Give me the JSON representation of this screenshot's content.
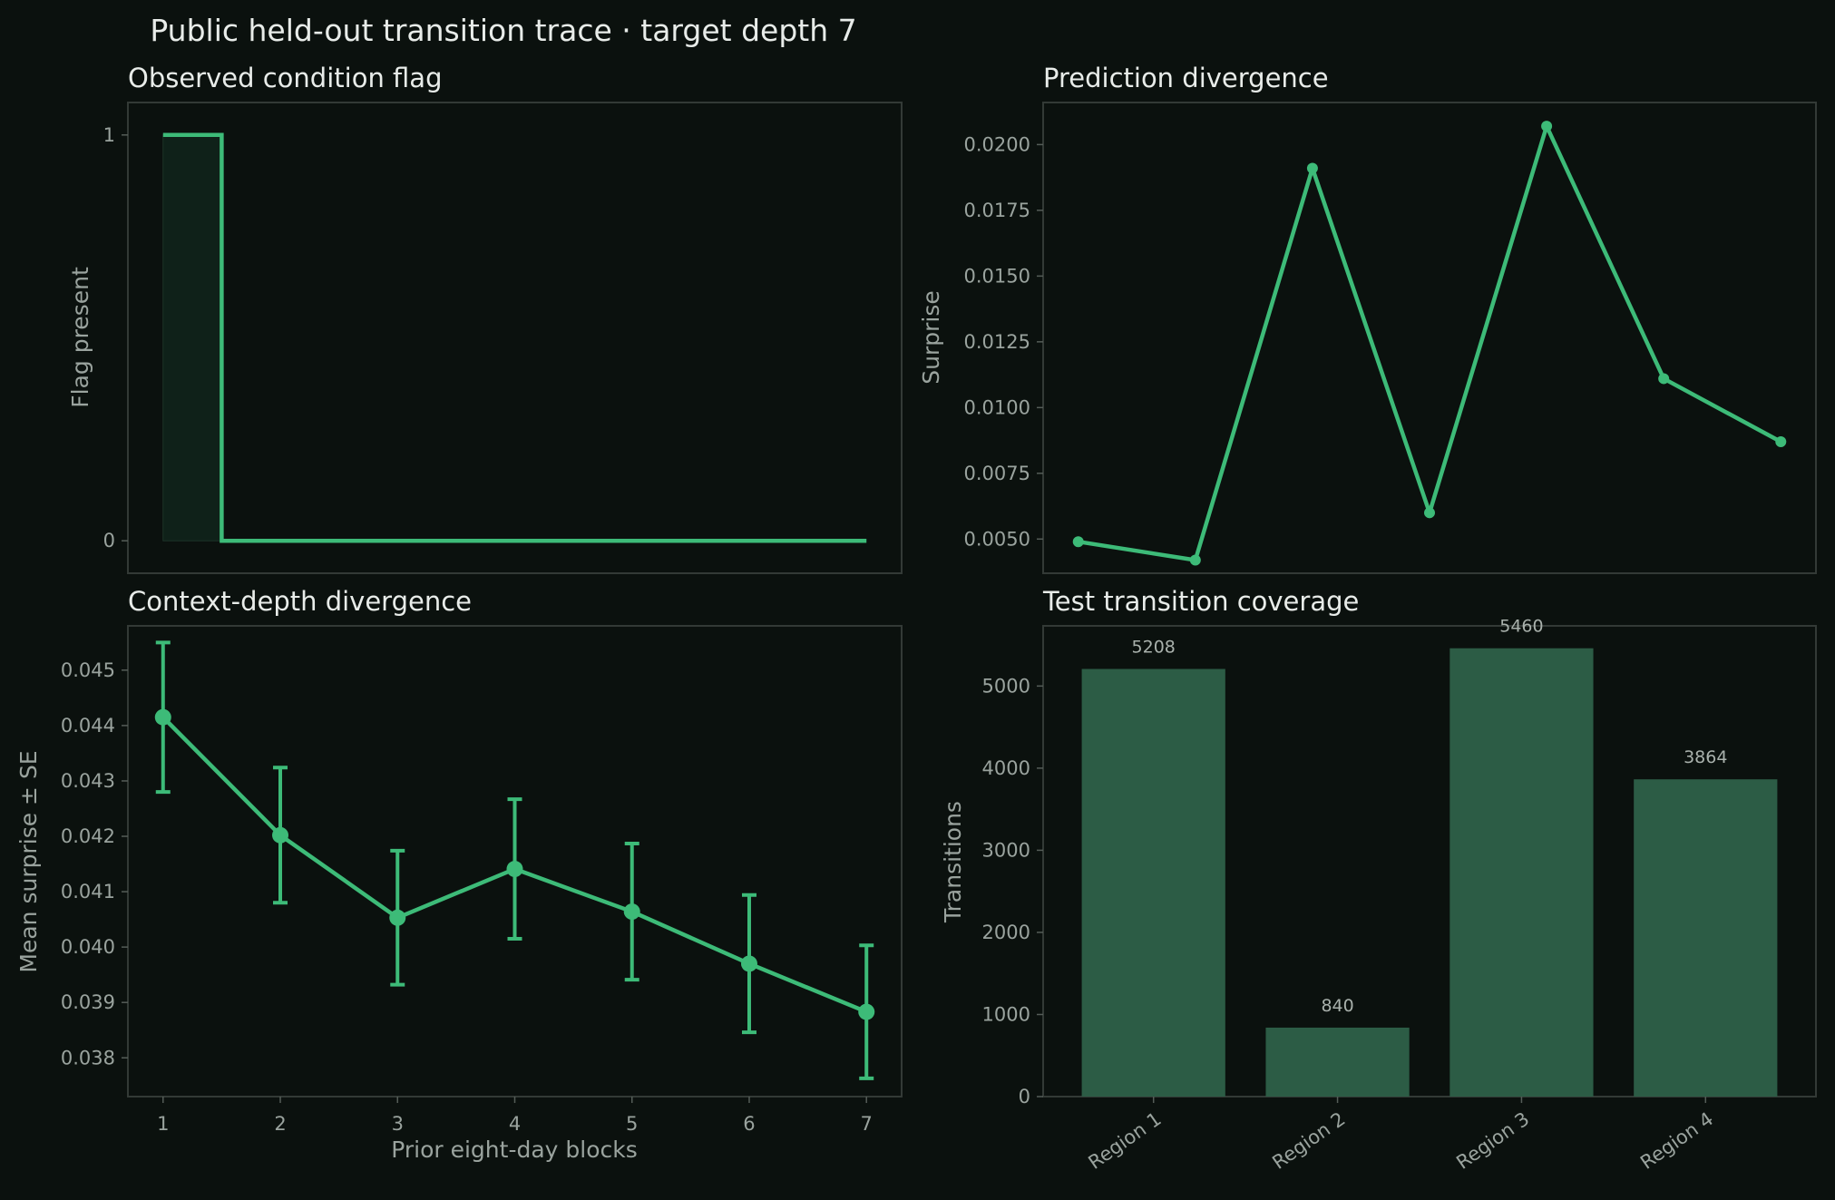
{
  "suptitle": "Public held-out transition trace · target depth 7",
  "colors": {
    "background": "#0b110e",
    "accent": "#3dbb78",
    "bar": "#2c5c45",
    "fill": "#0f2119"
  },
  "chart_data": [
    {
      "id": "flag",
      "type": "line",
      "title": "Observed condition flag",
      "xlabel": "",
      "ylabel": "Flag present",
      "step": "mid",
      "x": [
        1,
        2,
        3,
        4,
        5,
        6,
        7
      ],
      "values": [
        1,
        0,
        0,
        0,
        0,
        0,
        0
      ],
      "xlim": [
        0.7,
        7.3
      ],
      "ylim": [
        -0.08,
        1.08
      ],
      "yticks": [
        0,
        1
      ],
      "ytick_labels": [
        "0",
        "1"
      ]
    },
    {
      "id": "divergence",
      "type": "line",
      "title": "Prediction divergence",
      "xlabel": "",
      "ylabel": "Surprise",
      "x": [
        1,
        2,
        3,
        4,
        5,
        6,
        7
      ],
      "values": [
        0.0049,
        0.0042,
        0.0191,
        0.006,
        0.0207,
        0.0111,
        0.0087
      ],
      "xlim": [
        0.7,
        7.3
      ],
      "ylim": [
        0.0037,
        0.0216
      ],
      "yticks": [
        0.005,
        0.0075,
        0.01,
        0.0125,
        0.015,
        0.0175,
        0.02
      ],
      "ytick_labels": [
        "0.0050",
        "0.0075",
        "0.0100",
        "0.0125",
        "0.0150",
        "0.0175",
        "0.0200"
      ]
    },
    {
      "id": "context",
      "type": "line",
      "title": "Context-depth divergence",
      "xlabel": "Prior eight-day blocks",
      "ylabel": "Mean surprise ± SE",
      "x": [
        1,
        2,
        3,
        4,
        5,
        6,
        7
      ],
      "xtick_labels": [
        "1",
        "2",
        "3",
        "4",
        "5",
        "6",
        "7"
      ],
      "values": [
        0.04415,
        0.04202,
        0.04053,
        0.04141,
        0.04064,
        0.0397,
        0.03883
      ],
      "errors": [
        0.00135,
        0.00122,
        0.00121,
        0.00126,
        0.00123,
        0.00124,
        0.0012
      ],
      "xlim": [
        0.7,
        7.3
      ],
      "ylim": [
        0.0373,
        0.0458
      ],
      "yticks": [
        0.038,
        0.039,
        0.04,
        0.041,
        0.042,
        0.043,
        0.044,
        0.045
      ],
      "ytick_labels": [
        "0.038",
        "0.039",
        "0.040",
        "0.041",
        "0.042",
        "0.043",
        "0.044",
        "0.045"
      ]
    },
    {
      "id": "coverage",
      "type": "bar",
      "title": "Test transition coverage",
      "xlabel": "",
      "ylabel": "Transitions",
      "categories": [
        "Region 1",
        "Region 2",
        "Region 3",
        "Region 4"
      ],
      "values": [
        5208,
        840,
        5460,
        3864
      ],
      "data_labels": [
        "5208",
        "840",
        "5460",
        "3864"
      ],
      "ylim": [
        0,
        5733
      ],
      "yticks": [
        0,
        1000,
        2000,
        3000,
        4000,
        5000
      ],
      "ytick_labels": [
        "0",
        "1000",
        "2000",
        "3000",
        "4000",
        "5000"
      ]
    }
  ]
}
